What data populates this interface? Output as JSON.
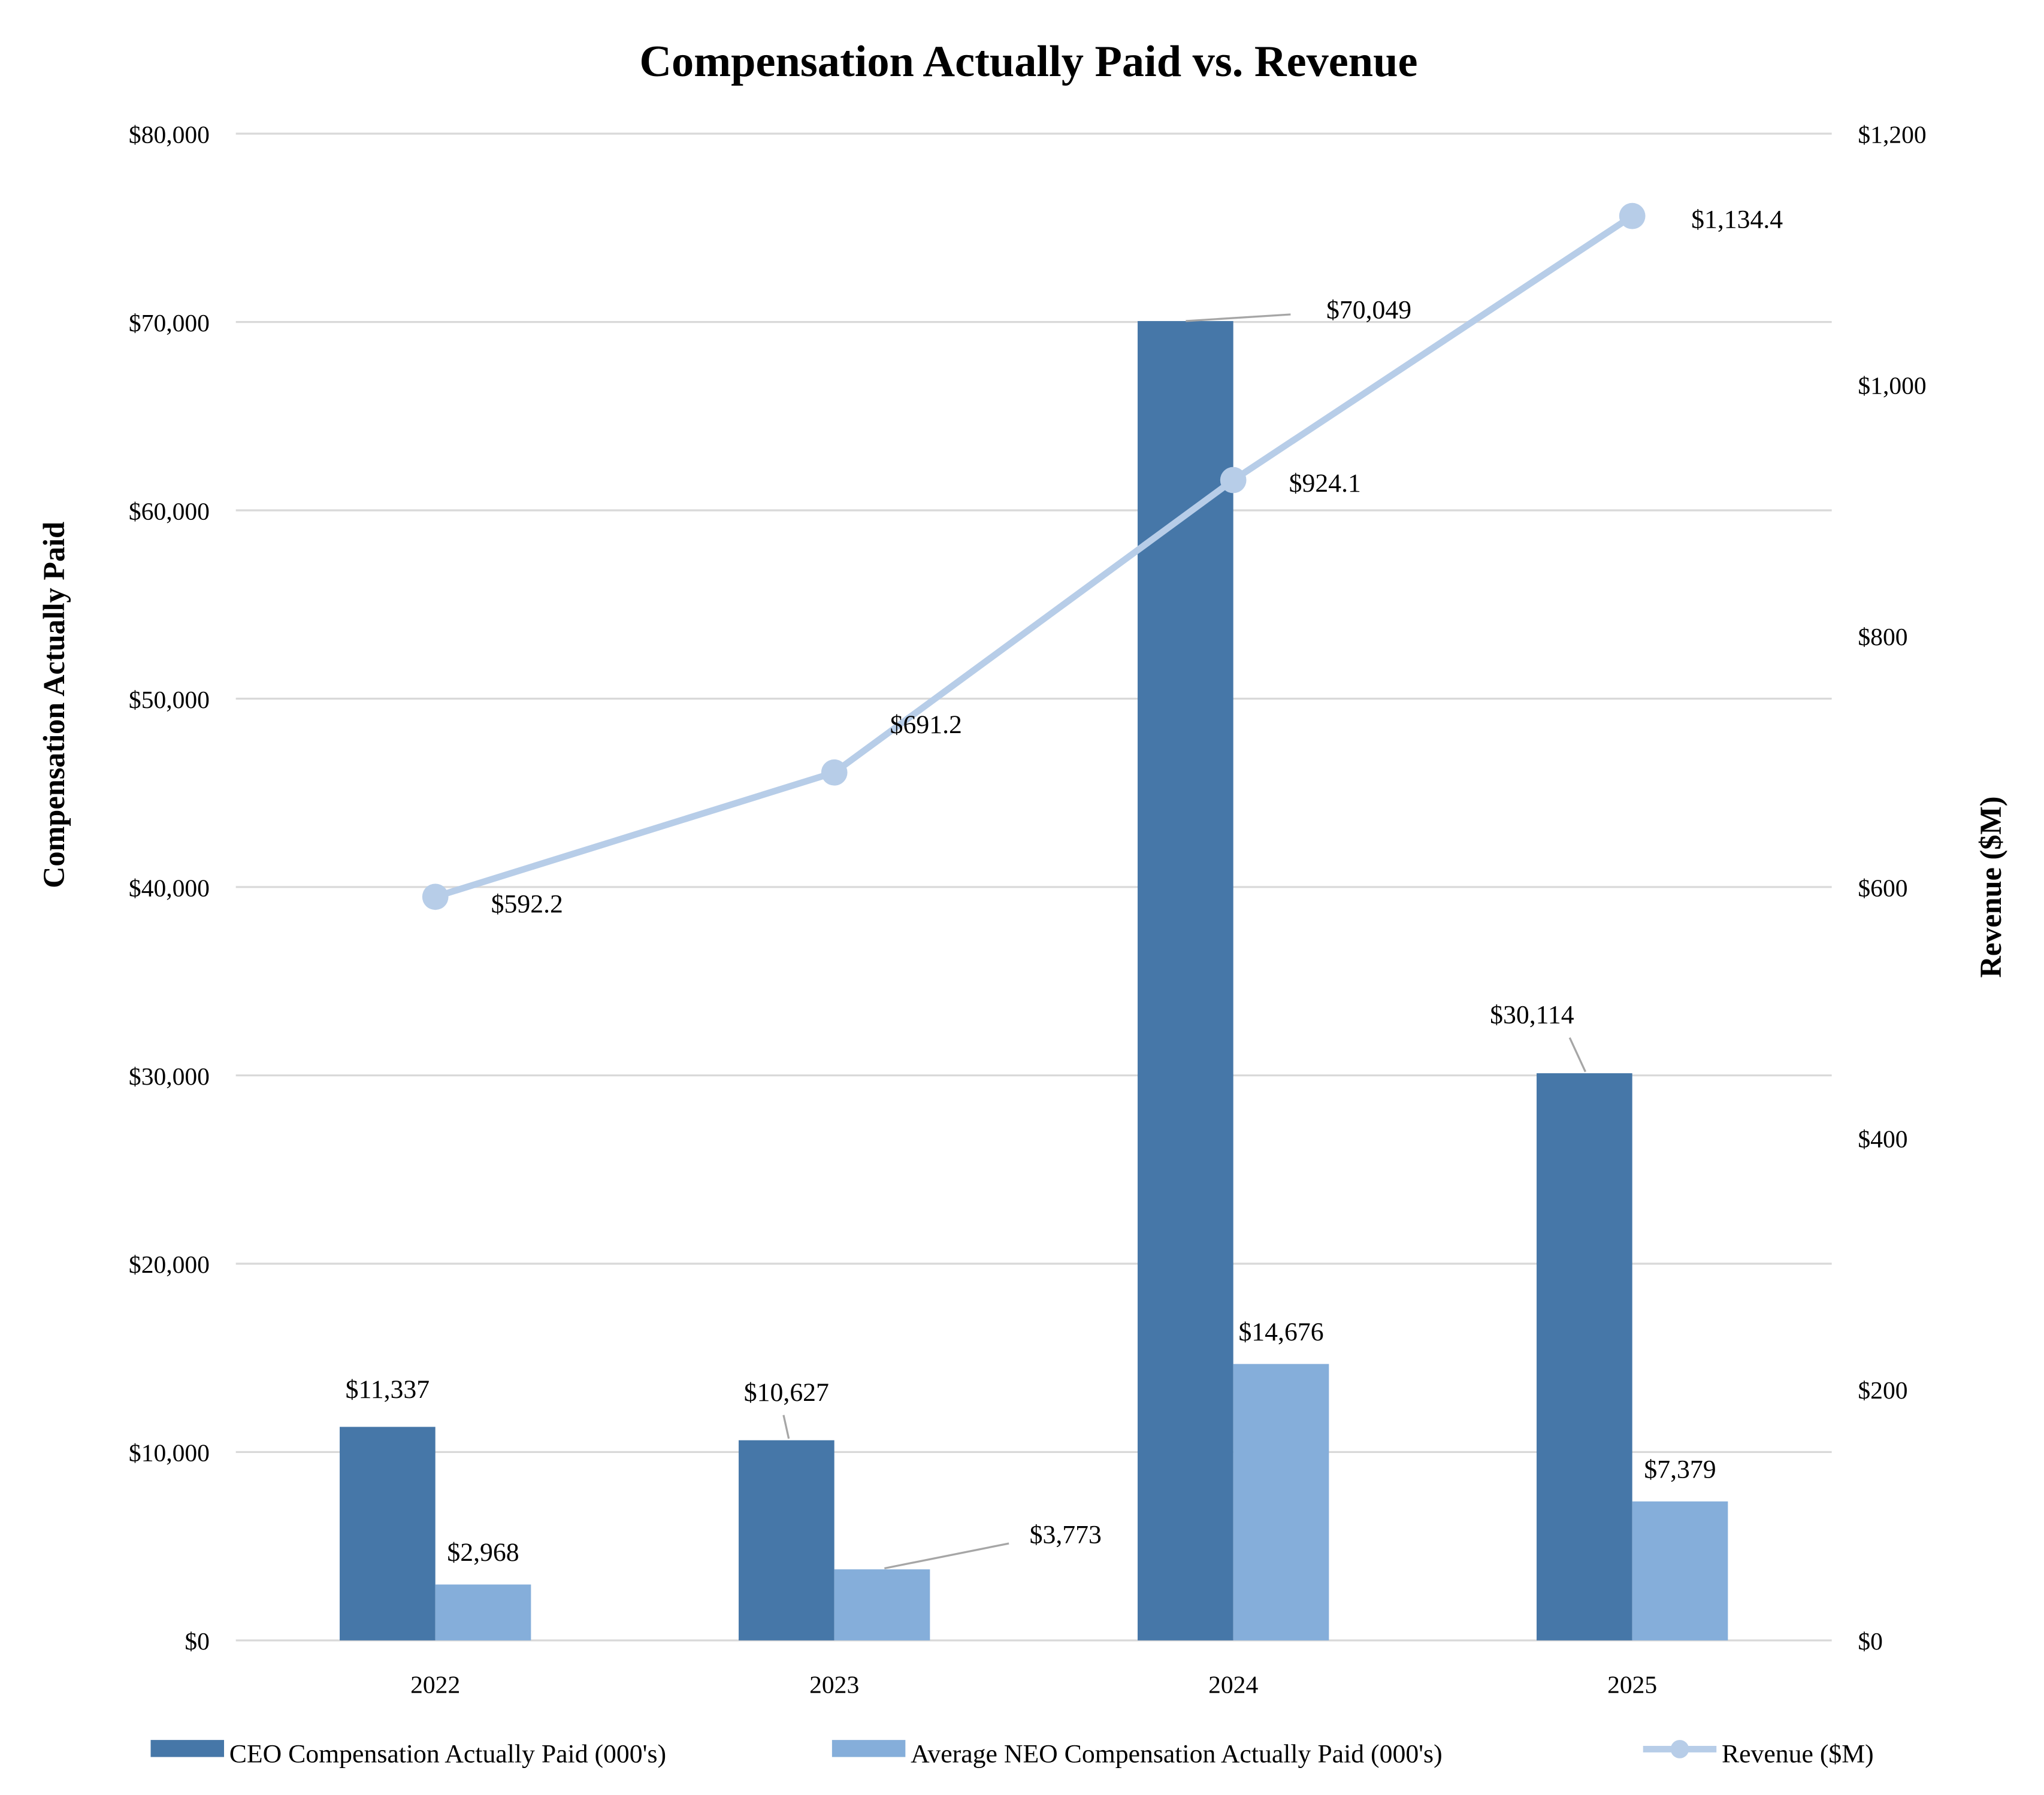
{
  "chart_data": {
    "type": "bar+line",
    "title": "Compensation Actually Paid vs. Revenue",
    "categories": [
      "2022",
      "2023",
      "2024",
      "2025"
    ],
    "ylabel_left": "Compensation Actually Paid",
    "ylabel_right": "Revenue ($M)",
    "ylim_left": [
      0,
      80000
    ],
    "ylim_right": [
      0,
      1200
    ],
    "yticks_left": [
      "$0",
      "$10,000",
      "$20,000",
      "$30,000",
      "$40,000",
      "$50,000",
      "$60,000",
      "$70,000",
      "$80,000"
    ],
    "yticks_right": [
      "$0",
      "$200",
      "$400",
      "$600",
      "$800",
      "$1,000",
      "$1,200"
    ],
    "grid": true,
    "legend_position": "bottom",
    "series": [
      {
        "name": "CEO Compensation Actually Paid (000's)",
        "type": "bar",
        "axis": "left",
        "color": "#4677A8",
        "values": [
          11337,
          10627,
          70049,
          30114
        ],
        "labels": [
          "$11,337",
          "$10,627",
          "$70,049",
          "$30,114"
        ]
      },
      {
        "name": "Average NEO Compensation Actually Paid (000's)",
        "type": "bar",
        "axis": "left",
        "color": "#85AEDA",
        "values": [
          2968,
          3773,
          14676,
          7379
        ],
        "labels": [
          "$2,968",
          "$3,773",
          "$14,676",
          "$7,379"
        ]
      },
      {
        "name": "Revenue ($M)",
        "type": "line",
        "axis": "right",
        "color": "#B7CDE8",
        "values": [
          592.2,
          691.2,
          924.1,
          1134.4
        ],
        "labels": [
          "$592.2",
          "$691.2",
          "$924.1",
          "$1,134.4"
        ]
      }
    ]
  }
}
